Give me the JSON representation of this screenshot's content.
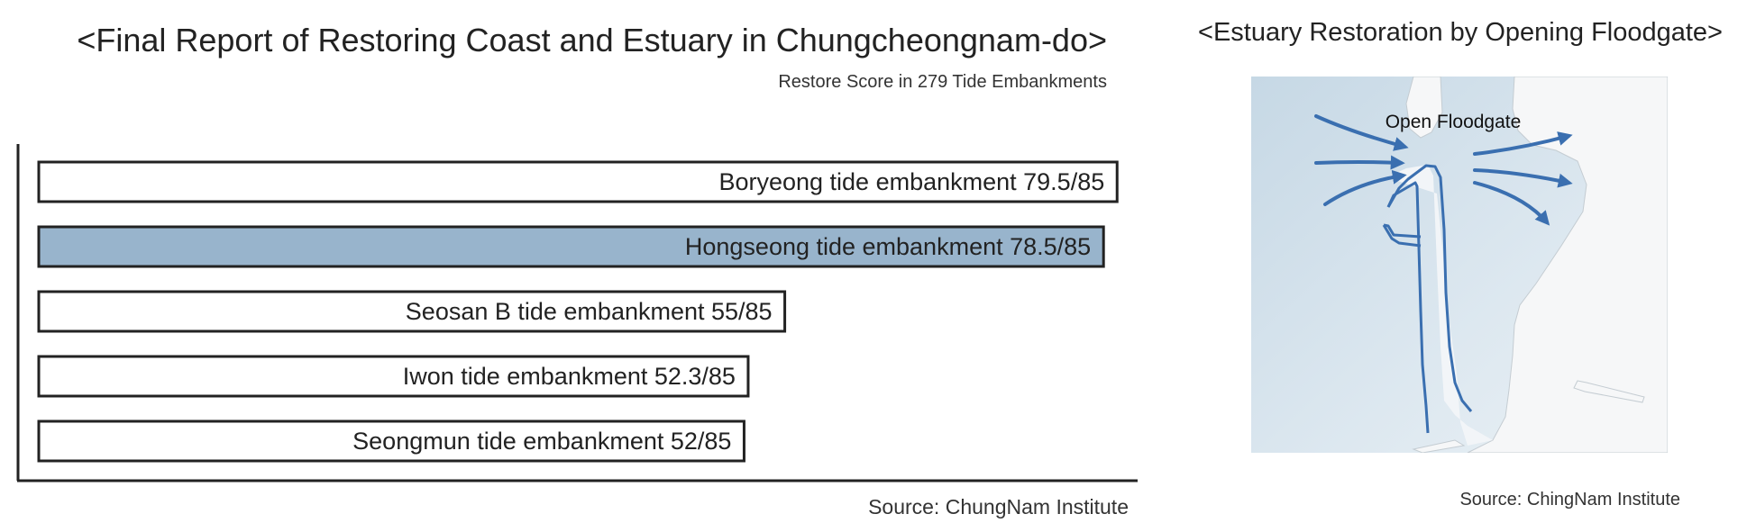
{
  "left_panel": {
    "title": "<Final Report of Restoring Coast and Estuary in Chungcheongnam-do>",
    "subtitle": "Restore Score in 279 Tide Embankments",
    "source": "Source: ChungNam Institute"
  },
  "right_panel": {
    "title": "<Estuary Restoration by Opening Floodgate>",
    "map_label": "Open Floodgate",
    "source": "Source: ChingNam Institute",
    "colors": {
      "water": "#d3e2ec",
      "land": "#f6f7f8",
      "arrow": "#3a6fb0"
    }
  },
  "chart_data": {
    "type": "bar",
    "orientation": "horizontal",
    "title": "<Final Report of Restoring Coast and Estuary in Chungcheongnam-do>",
    "subtitle": "Restore Score in 279 Tide Embankments",
    "categories": [
      "Boryeong tide embankment  79.5/85",
      "Hongseong tide embankment  78.5/85",
      "Seosan B tide embankment 55/85",
      "Iwon tide embankment  52.3/85",
      "Seongmun tide embankment  52/85"
    ],
    "values": [
      79.5,
      78.5,
      55,
      52.3,
      52
    ],
    "max_score": 85,
    "highlighted_index": 1,
    "colors": {
      "bar": "#ffffff",
      "highlight": "#98b4cc",
      "outline": "#222222"
    },
    "xlim": [
      0,
      85
    ],
    "xlabel": "",
    "ylabel": "",
    "grid": false,
    "legend": "none"
  }
}
